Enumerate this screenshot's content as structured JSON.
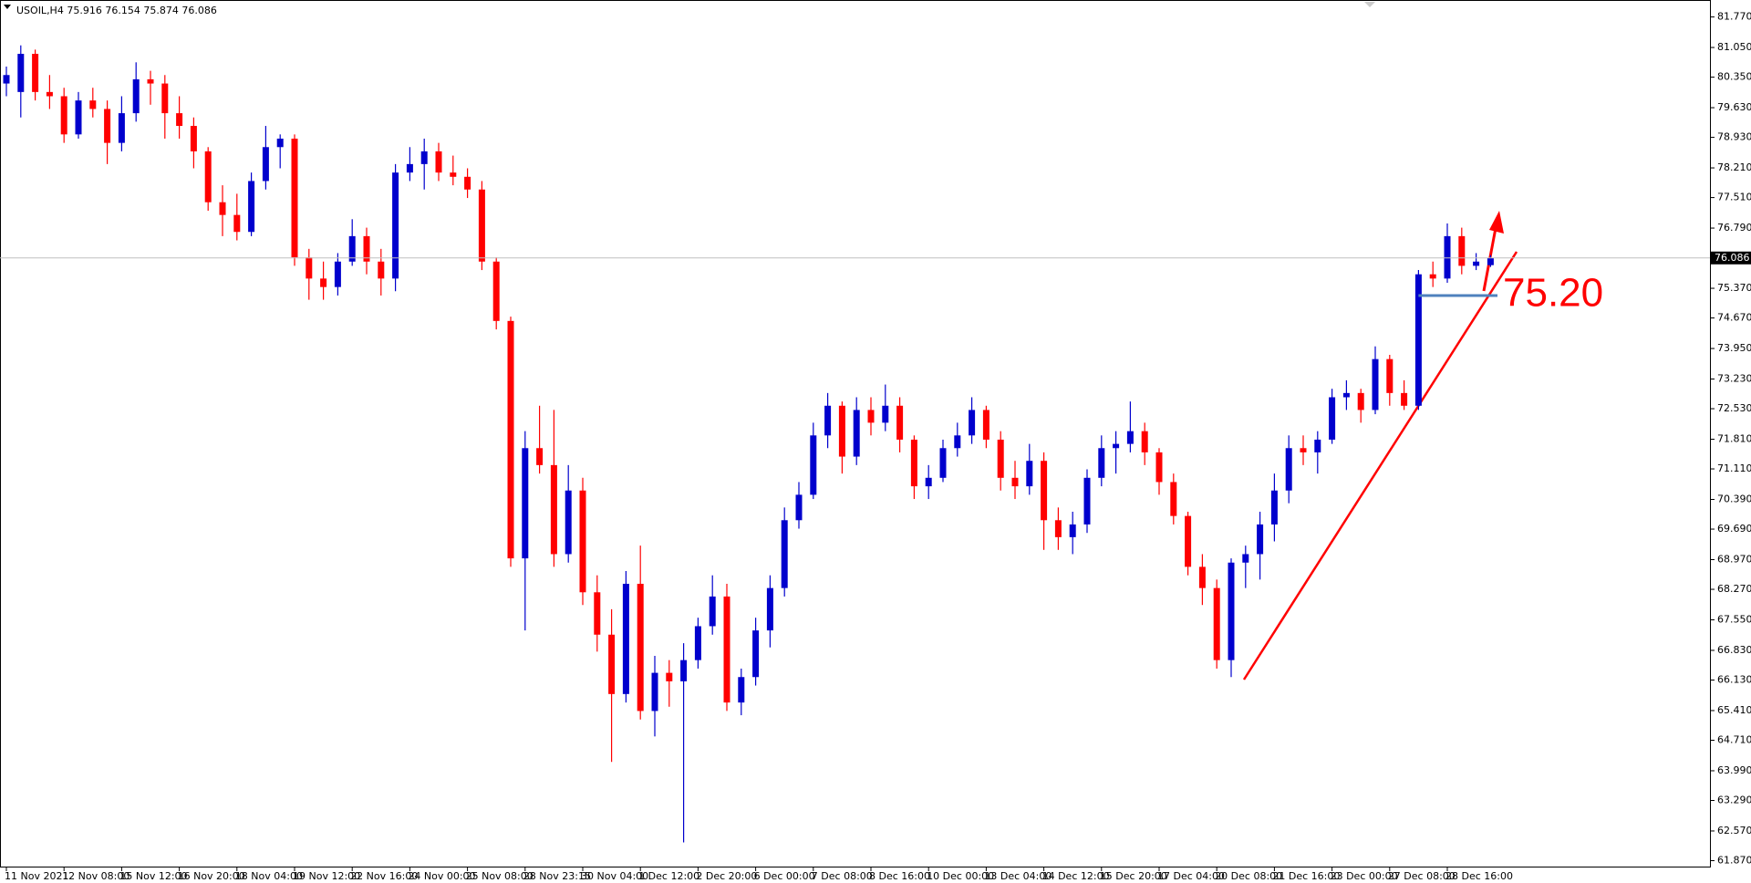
{
  "chart_data": {
    "type": "candlestick",
    "symbol": "USOIL,H4",
    "categories": [
      "11 Nov 2021",
      null,
      null,
      null,
      "12 Nov 08:00",
      null,
      null,
      null,
      "15 Nov 12:00",
      null,
      null,
      null,
      "16 Nov 20:00",
      null,
      null,
      null,
      "18 Nov 04:00",
      null,
      null,
      null,
      "19 Nov 12:00",
      null,
      null,
      null,
      "22 Nov 16:00",
      null,
      null,
      null,
      "24 Nov 00:00",
      null,
      null,
      null,
      "25 Nov 08:00",
      null,
      null,
      null,
      "28 Nov 23:15",
      null,
      null,
      null,
      "30 Nov 04:00",
      null,
      null,
      null,
      "1 Dec 12:00",
      null,
      null,
      null,
      "2 Dec 20:00",
      null,
      null,
      null,
      "6 Dec 00:00",
      null,
      null,
      null,
      "7 Dec 08:00",
      null,
      null,
      null,
      "8 Dec 16:00",
      null,
      null,
      null,
      "10 Dec 00:00",
      null,
      null,
      null,
      "13 Dec 04:00",
      null,
      null,
      null,
      "14 Dec 12:00",
      null,
      null,
      null,
      "15 Dec 20:00",
      null,
      null,
      null,
      "17 Dec 04:00",
      null,
      null,
      null,
      "20 Dec 08:00",
      null,
      null,
      null,
      "21 Dec 16:00",
      null,
      null,
      null,
      "23 Dec 00:00",
      null,
      null,
      null,
      "27 Dec 08:00",
      null,
      null,
      null,
      "28 Dec 16:00",
      null,
      null,
      null
    ],
    "series": [
      {
        "up_color": "#0000cd",
        "down_color": "#ff0000",
        "open": [
          80.2,
          80.0,
          80.9,
          80.0,
          79.9,
          79.0,
          79.8,
          79.6,
          78.8,
          79.5,
          80.3,
          80.2,
          79.5,
          79.2,
          78.6,
          77.4,
          77.1,
          76.7,
          77.9,
          78.7,
          78.9,
          76.1,
          75.6,
          75.4,
          76.0,
          76.6,
          76.0,
          75.6,
          78.1,
          78.3,
          78.6,
          78.1,
          78.0,
          77.7,
          76.0,
          74.6,
          69.0,
          71.6,
          71.2,
          69.1,
          70.6,
          68.2,
          67.2,
          65.8,
          68.4,
          65.4,
          66.3,
          66.1,
          66.6,
          67.4,
          68.1,
          65.6,
          66.2,
          67.3,
          68.3,
          69.9,
          70.5,
          71.9,
          72.6,
          71.4,
          72.5,
          72.2,
          72.6,
          71.8,
          70.7,
          70.9,
          71.6,
          71.9,
          72.5,
          71.8,
          70.9,
          70.7,
          71.3,
          69.9,
          69.5,
          69.8,
          70.9,
          71.6,
          71.7,
          72.0,
          71.5,
          70.8,
          70.0,
          68.8,
          68.3,
          66.6,
          68.9,
          69.1,
          69.8,
          70.6,
          71.6,
          71.5,
          71.8,
          72.8,
          72.9,
          72.5,
          73.7,
          72.9,
          72.6,
          75.7,
          75.6,
          76.6,
          75.9,
          75.916
        ],
        "high": [
          80.6,
          81.1,
          81.0,
          80.4,
          80.1,
          80.0,
          80.1,
          79.8,
          79.9,
          80.7,
          80.5,
          80.4,
          79.9,
          79.4,
          78.7,
          77.8,
          77.6,
          78.1,
          79.2,
          79.0,
          79.0,
          76.3,
          76.0,
          76.2,
          77.0,
          76.8,
          76.3,
          78.3,
          78.7,
          78.9,
          78.8,
          78.5,
          78.2,
          77.9,
          76.1,
          74.7,
          72.0,
          72.6,
          72.5,
          71.2,
          70.9,
          68.6,
          67.8,
          68.7,
          69.3,
          66.7,
          66.6,
          67.0,
          67.6,
          68.6,
          68.4,
          66.4,
          67.6,
          68.6,
          70.2,
          70.8,
          72.2,
          72.9,
          72.7,
          72.8,
          72.8,
          73.1,
          72.8,
          71.9,
          71.2,
          71.8,
          72.2,
          72.8,
          72.6,
          72.0,
          71.3,
          71.7,
          71.5,
          70.2,
          70.1,
          71.1,
          71.9,
          72.0,
          72.7,
          72.2,
          71.6,
          71.0,
          70.1,
          69.1,
          68.5,
          69.0,
          69.3,
          70.1,
          71.0,
          71.9,
          71.9,
          72.0,
          73.0,
          73.2,
          73.0,
          74.0,
          73.8,
          73.2,
          75.8,
          76.0,
          76.9,
          76.8,
          76.2,
          76.154
        ],
        "low": [
          79.9,
          79.4,
          79.8,
          79.6,
          78.8,
          78.9,
          79.4,
          78.3,
          78.6,
          79.3,
          79.7,
          78.9,
          78.9,
          78.2,
          77.2,
          76.6,
          76.5,
          76.6,
          77.7,
          78.2,
          75.9,
          75.1,
          75.1,
          75.2,
          75.9,
          75.7,
          75.2,
          75.3,
          77.9,
          77.7,
          77.9,
          77.8,
          77.5,
          75.8,
          74.4,
          68.8,
          67.3,
          71.0,
          68.8,
          68.9,
          67.9,
          66.8,
          64.2,
          65.6,
          65.2,
          64.8,
          65.5,
          62.3,
          66.4,
          67.2,
          65.4,
          65.3,
          66.0,
          66.9,
          68.1,
          69.7,
          70.4,
          71.6,
          71.0,
          71.2,
          71.9,
          72.0,
          71.5,
          70.4,
          70.4,
          70.8,
          71.4,
          71.7,
          71.6,
          70.6,
          70.4,
          70.5,
          69.2,
          69.2,
          69.1,
          69.6,
          70.7,
          71.0,
          71.5,
          71.2,
          70.5,
          69.8,
          68.6,
          67.9,
          66.4,
          66.2,
          68.3,
          68.5,
          69.4,
          70.3,
          71.2,
          71.0,
          71.7,
          72.5,
          72.2,
          72.4,
          72.6,
          72.5,
          72.5,
          75.4,
          75.5,
          75.7,
          75.8,
          75.874
        ],
        "close": [
          80.4,
          80.9,
          80.0,
          79.9,
          79.0,
          79.8,
          79.6,
          78.8,
          79.5,
          80.3,
          80.2,
          79.5,
          79.2,
          78.6,
          77.4,
          77.1,
          76.7,
          77.9,
          78.7,
          78.9,
          76.1,
          75.6,
          75.4,
          76.0,
          76.6,
          76.0,
          75.6,
          78.1,
          78.3,
          78.6,
          78.1,
          78.0,
          77.7,
          76.0,
          74.6,
          69.0,
          71.6,
          71.2,
          69.1,
          70.6,
          68.2,
          67.2,
          65.8,
          68.4,
          65.4,
          66.3,
          66.1,
          66.6,
          67.4,
          68.1,
          65.6,
          66.2,
          67.3,
          68.3,
          69.9,
          70.5,
          71.9,
          72.6,
          71.4,
          72.5,
          72.2,
          72.6,
          71.8,
          70.7,
          70.9,
          71.6,
          71.9,
          72.5,
          71.8,
          70.9,
          70.7,
          71.3,
          69.9,
          69.5,
          69.8,
          70.9,
          71.6,
          71.7,
          72.0,
          71.5,
          70.8,
          70.0,
          68.8,
          68.3,
          66.6,
          68.9,
          69.1,
          69.8,
          70.6,
          71.6,
          71.5,
          71.8,
          72.8,
          72.9,
          72.5,
          73.7,
          72.9,
          72.6,
          75.7,
          75.6,
          76.6,
          75.9,
          76.0,
          76.086
        ]
      }
    ],
    "ylim": [
      61.73,
      82.17
    ],
    "yticks": [
      {
        "value": 81.77,
        "label": "81.770"
      },
      {
        "value": 81.05,
        "label": "81.050"
      },
      {
        "value": 80.35,
        "label": "80.350"
      },
      {
        "value": 79.63,
        "label": "79.630"
      },
      {
        "value": 78.93,
        "label": "78.930"
      },
      {
        "value": 78.21,
        "label": "78.210"
      },
      {
        "value": 77.51,
        "label": "77.510"
      },
      {
        "value": 76.79,
        "label": "76.790"
      },
      {
        "value": 75.37,
        "label": "75.370"
      },
      {
        "value": 74.67,
        "label": "74.670"
      },
      {
        "value": 73.95,
        "label": "73.950"
      },
      {
        "value": 73.23,
        "label": "73.230"
      },
      {
        "value": 72.53,
        "label": "72.530"
      },
      {
        "value": 71.81,
        "label": "71.810"
      },
      {
        "value": 71.11,
        "label": "71.110"
      },
      {
        "value": 70.39,
        "label": "70.390"
      },
      {
        "value": 69.69,
        "label": "69.690"
      },
      {
        "value": 68.97,
        "label": "68.970"
      },
      {
        "value": 68.27,
        "label": "68.270"
      },
      {
        "value": 67.55,
        "label": "67.550"
      },
      {
        "value": 66.83,
        "label": "66.830"
      },
      {
        "value": 66.13,
        "label": "66.130"
      },
      {
        "value": 65.41,
        "label": "65.410"
      },
      {
        "value": 64.71,
        "label": "64.710"
      },
      {
        "value": 63.99,
        "label": "63.990"
      },
      {
        "value": 63.29,
        "label": "63.290"
      },
      {
        "value": 62.57,
        "label": "62.570"
      },
      {
        "value": 61.87,
        "label": "61.870"
      }
    ],
    "level": {
      "value": 75.2,
      "label": "75.20",
      "color": "#4f81bd"
    },
    "grid": false
  }
}
